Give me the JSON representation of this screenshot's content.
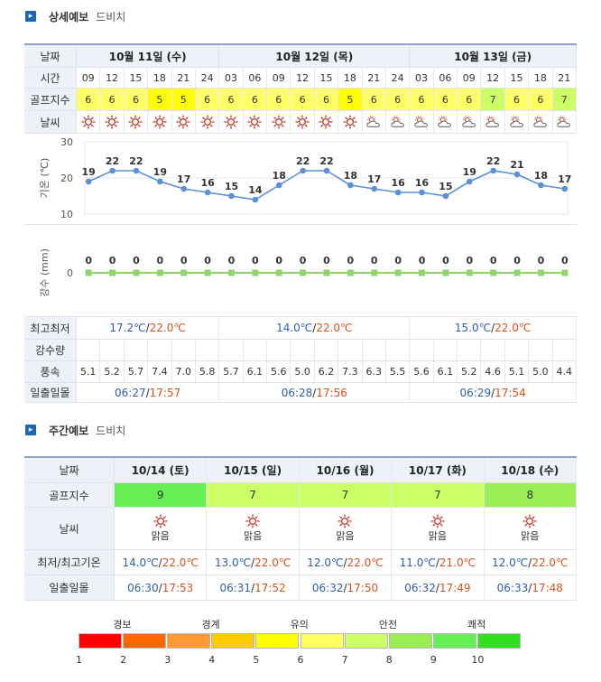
{
  "detailed": {
    "section_title": "상세예보",
    "place": "드비치",
    "labels": {
      "date": "날짜",
      "time": "시간",
      "golf_index": "골프지수",
      "weather": "날씨",
      "temp_axis": "기온 (℃)",
      "rain_axis": "강수 (mm)",
      "minmax": "최고최저",
      "precip": "강수량",
      "wind": "풍속",
      "sun": "일출일몰"
    },
    "days": [
      {
        "label": "10월 11일 (수)",
        "min": "17.2℃",
        "sep": "/",
        "max": "22.0℃",
        "sunrise": "06:27",
        "sunset": "17:57"
      },
      {
        "label": "10월 12일 (목)",
        "min": "14.0℃",
        "sep": "/",
        "max": "22.0℃",
        "sunrise": "06:28",
        "sunset": "17:56"
      },
      {
        "label": "10월 13일 (금)",
        "min": "15.0℃",
        "sep": "/",
        "max": "22.0℃",
        "sunrise": "06:29",
        "sunset": "17:54"
      }
    ],
    "times": [
      "09",
      "12",
      "15",
      "18",
      "21",
      "24",
      "03",
      "06",
      "09",
      "12",
      "15",
      "18",
      "21",
      "24",
      "03",
      "06",
      "09",
      "12",
      "15",
      "18",
      "21"
    ],
    "golf": [
      6,
      6,
      6,
      5,
      5,
      6,
      6,
      6,
      6,
      6,
      6,
      5,
      6,
      6,
      6,
      6,
      6,
      7,
      6,
      6,
      7
    ],
    "weather_icons": [
      "sun-icon",
      "sun-icon",
      "sun-icon",
      "sun-icon",
      "sun-icon",
      "sun-icon",
      "sun-icon",
      "sun-icon",
      "sun-icon",
      "sun-icon",
      "sun-icon",
      "sun-icon",
      "cloud-icon",
      "cloud-icon",
      "cloud-icon",
      "cloud-icon",
      "cloud-icon",
      "cloud-icon",
      "cloud-icon",
      "cloud-icon",
      "cloud-icon"
    ],
    "wind": [
      "5.1",
      "5.2",
      "5.7",
      "7.4",
      "7.0",
      "5.8",
      "5.7",
      "6.1",
      "5.6",
      "5.0",
      "6.2",
      "7.3",
      "6.3",
      "5.5",
      "5.6",
      "6.1",
      "5.2",
      "4.6",
      "5.1",
      "5.0",
      "4.4"
    ]
  },
  "chart_data": [
    {
      "type": "line",
      "ylabel": "기온 (℃)",
      "ylim": [
        10,
        30
      ],
      "yticks": [
        "30",
        "20",
        "10"
      ],
      "categories": [
        "09",
        "12",
        "15",
        "18",
        "21",
        "24",
        "03",
        "06",
        "09",
        "12",
        "15",
        "18",
        "21",
        "24",
        "03",
        "06",
        "09",
        "12",
        "15",
        "18",
        "21"
      ],
      "series": [
        {
          "values": [
            19,
            22,
            22,
            19,
            17,
            16,
            15,
            14,
            18,
            22,
            22,
            18,
            17,
            16,
            16,
            15,
            19,
            22,
            21,
            18,
            17
          ]
        }
      ],
      "grid": true
    },
    {
      "type": "line",
      "ylabel": "강수 (mm)",
      "yticks": [
        "0"
      ],
      "categories": [
        "09",
        "12",
        "15",
        "18",
        "21",
        "24",
        "03",
        "06",
        "09",
        "12",
        "15",
        "18",
        "21",
        "24",
        "03",
        "06",
        "09",
        "12",
        "15",
        "18",
        "21"
      ],
      "series": [
        {
          "values": [
            0,
            0,
            0,
            0,
            0,
            0,
            0,
            0,
            0,
            0,
            0,
            0,
            0,
            0,
            0,
            0,
            0,
            0,
            0,
            0,
            0
          ]
        }
      ],
      "grid": true
    }
  ],
  "weekly": {
    "section_title": "주간예보",
    "place": "드비치",
    "labels": {
      "date": "날짜",
      "golf_index": "골프지수",
      "weather": "날씨",
      "temp": "최저/최고기온",
      "sun": "일출일몰"
    },
    "days": [
      {
        "date": "10/14 (토)",
        "golf": "9",
        "weather": "맑음",
        "min": "14.0℃",
        "max": "22.0℃",
        "sunrise": "06:30",
        "sunset": "17:53"
      },
      {
        "date": "10/15 (일)",
        "golf": "7",
        "weather": "맑음",
        "min": "13.0℃",
        "max": "22.0℃",
        "sunrise": "06:31",
        "sunset": "17:52"
      },
      {
        "date": "10/16 (월)",
        "golf": "7",
        "weather": "맑음",
        "min": "12.0℃",
        "max": "22.0℃",
        "sunrise": "06:32",
        "sunset": "17:50"
      },
      {
        "date": "10/17 (화)",
        "golf": "7",
        "weather": "맑음",
        "min": "11.0℃",
        "max": "21.0℃",
        "sunrise": "06:32",
        "sunset": "17:49"
      },
      {
        "date": "10/18 (수)",
        "golf": "8",
        "weather": "맑음",
        "min": "12.0℃",
        "max": "22.0℃",
        "sunrise": "06:33",
        "sunset": "17:48"
      }
    ]
  },
  "legend": {
    "groups": [
      "경보",
      "경계",
      "유의",
      "안전",
      "쾌적"
    ],
    "numbers": [
      "1",
      "2",
      "3",
      "4",
      "5",
      "6",
      "7",
      "8",
      "9",
      "10"
    ],
    "colors": [
      "#ff0000",
      "#ff6600",
      "#ff9933",
      "#ffcc00",
      "#ffff00",
      "#ffff66",
      "#ccff66",
      "#99ee55",
      "#66ee55",
      "#33dd22"
    ]
  },
  "golf_colors": {
    "5": "#ffff00",
    "6": "#ffff66",
    "7": "#ccff66",
    "8": "#99ee55",
    "9": "#66ee55"
  }
}
